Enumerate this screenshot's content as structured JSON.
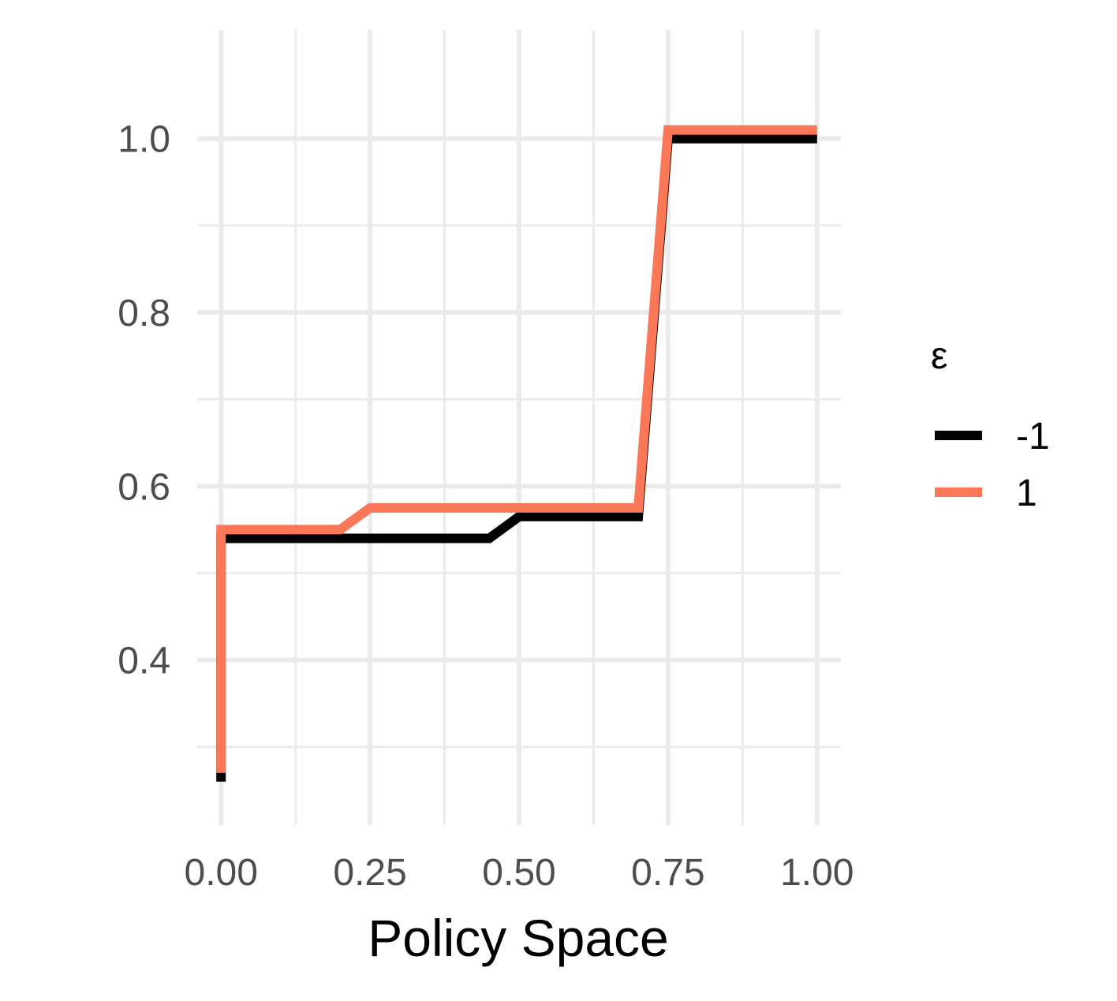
{
  "chart_data": {
    "type": "line",
    "title": "",
    "xlabel": "Policy Space",
    "ylabel": "",
    "xlim": [
      -0.04,
      1.04
    ],
    "ylim": [
      0.21,
      1.125
    ],
    "x_ticks": [
      0.0,
      0.25,
      0.5,
      0.75,
      1.0
    ],
    "x_tick_labels": [
      "0.00",
      "0.25",
      "0.50",
      "0.75",
      "1.00"
    ],
    "x_minor": [
      0.125,
      0.375,
      0.625,
      0.875
    ],
    "y_ticks": [
      0.4,
      0.6,
      0.8,
      1.0
    ],
    "y_tick_labels": [
      "0.4",
      "0.6",
      "0.8",
      "1.0"
    ],
    "y_minor": [
      0.3,
      0.5,
      0.7,
      0.9
    ],
    "grid": true,
    "legend": {
      "title": "ε",
      "position": "right"
    },
    "series": [
      {
        "name": "-1",
        "color": "#000000",
        "x": [
          0.0,
          0.0,
          0.2,
          0.25,
          0.45,
          0.5,
          0.7,
          0.75,
          1.0
        ],
        "y": [
          0.26,
          0.54,
          0.54,
          0.54,
          0.54,
          0.565,
          0.565,
          1.0,
          1.0
        ]
      },
      {
        "name": "1",
        "color": "#FA7857",
        "x": [
          0.0,
          0.0,
          0.2,
          0.25,
          0.45,
          0.5,
          0.7,
          0.75,
          1.0
        ],
        "y": [
          0.27,
          0.55,
          0.55,
          0.575,
          0.575,
          0.575,
          0.575,
          1.01,
          1.01
        ]
      }
    ]
  }
}
